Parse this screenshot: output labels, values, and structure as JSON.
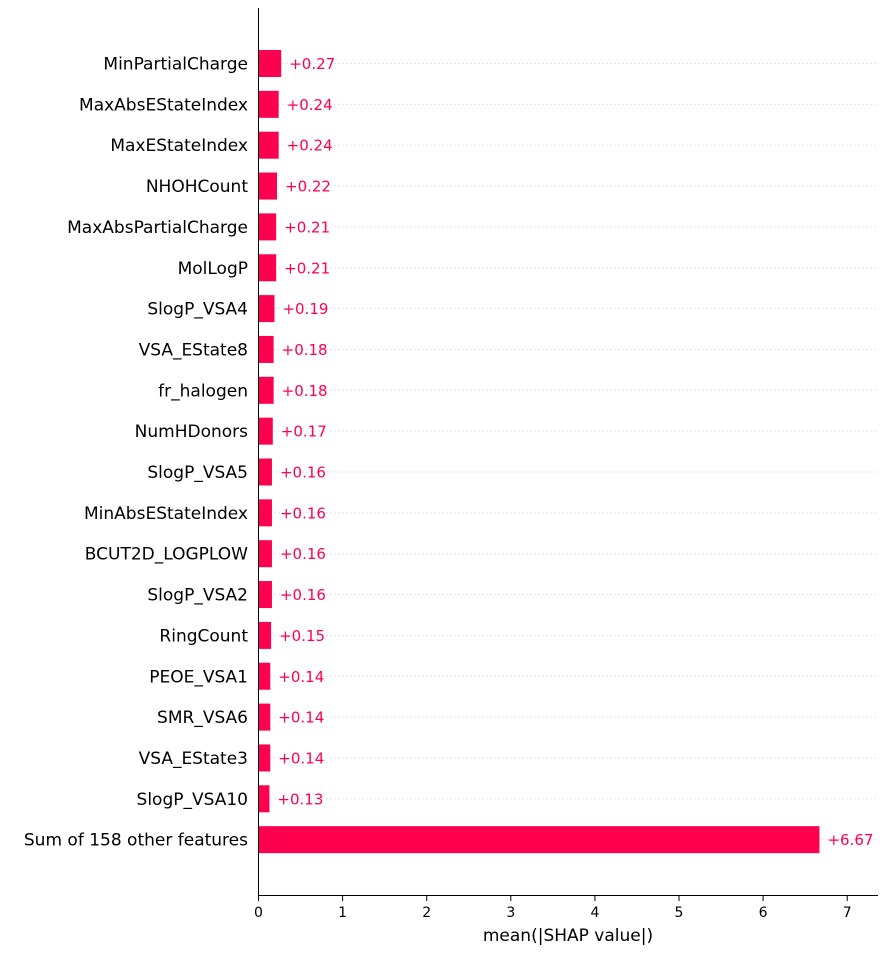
{
  "chart_data": {
    "type": "bar",
    "orientation": "horizontal",
    "bar_color": "#ff0051",
    "value_label_color": "#ff0051",
    "grid": "dotted lines per row",
    "categories": [
      "MinPartialCharge",
      "MaxAbsEStateIndex",
      "MaxEStateIndex",
      "NHOHCount",
      "MaxAbsPartialCharge",
      "MolLogP",
      "SlogP_VSA4",
      "VSA_EState8",
      "fr_halogen",
      "NumHDonors",
      "SlogP_VSA5",
      "MinAbsEStateIndex",
      "BCUT2D_LOGPLOW",
      "SlogP_VSA2",
      "RingCount",
      "PEOE_VSA1",
      "SMR_VSA6",
      "VSA_EState3",
      "SlogP_VSA10",
      "Sum of 158 other features"
    ],
    "values": [
      0.27,
      0.24,
      0.24,
      0.22,
      0.21,
      0.21,
      0.19,
      0.18,
      0.18,
      0.17,
      0.16,
      0.16,
      0.16,
      0.16,
      0.15,
      0.14,
      0.14,
      0.14,
      0.13,
      6.67
    ],
    "value_labels": [
      "+0.27",
      "+0.24",
      "+0.24",
      "+0.22",
      "+0.21",
      "+0.21",
      "+0.19",
      "+0.18",
      "+0.18",
      "+0.17",
      "+0.16",
      "+0.16",
      "+0.16",
      "+0.16",
      "+0.15",
      "+0.14",
      "+0.14",
      "+0.14",
      "+0.13",
      "+6.67"
    ],
    "xlabel": "mean(|SHAP value|)",
    "ylabel": "",
    "title": "",
    "xlim": [
      0,
      7.35
    ],
    "xticks": [
      0,
      1,
      2,
      3,
      4,
      5,
      6,
      7
    ]
  }
}
